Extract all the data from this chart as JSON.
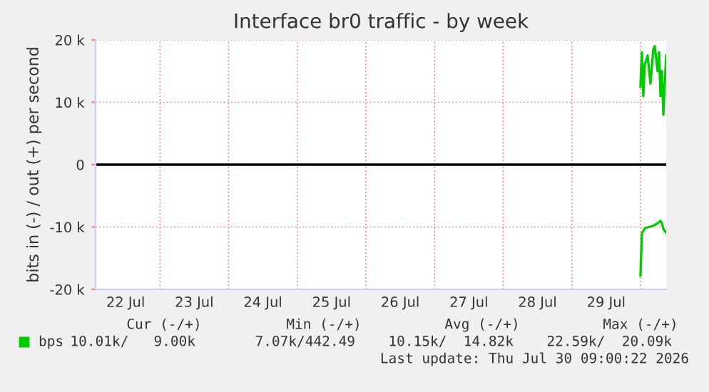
{
  "chart_data": {
    "type": "line",
    "title": "Interface br0 traffic - by week",
    "ylabel": "bits in (-) / out (+) per second",
    "xlim": [
      "2026-07-22T01:30",
      "2026-07-30T09:00"
    ],
    "xticks": [
      {
        "value": "2026-07-22T12:00",
        "label": "22 Jul"
      },
      {
        "value": "2026-07-23T00:00",
        "label": null
      },
      {
        "value": "2026-07-23T12:00",
        "label": "23 Jul"
      },
      {
        "value": "2026-07-24T00:00",
        "label": null
      },
      {
        "value": "2026-07-24T12:00",
        "label": "24 Jul"
      },
      {
        "value": "2026-07-25T00:00",
        "label": null
      },
      {
        "value": "2026-07-25T12:00",
        "label": "25 Jul"
      },
      {
        "value": "2026-07-26T00:00",
        "label": null
      },
      {
        "value": "2026-07-26T12:00",
        "label": "26 Jul"
      },
      {
        "value": "2026-07-27T00:00",
        "label": null
      },
      {
        "value": "2026-07-27T12:00",
        "label": "27 Jul"
      },
      {
        "value": "2026-07-28T00:00",
        "label": null
      },
      {
        "value": "2026-07-28T12:00",
        "label": "28 Jul"
      },
      {
        "value": "2026-07-29T00:00",
        "label": null
      },
      {
        "value": "2026-07-29T12:00",
        "label": "29 Jul"
      },
      {
        "value": "2026-07-30T00:00",
        "label": null
      }
    ],
    "ylim": [
      -20000,
      20000
    ],
    "yticks": [
      {
        "value": -20000,
        "label": "-20 k"
      },
      {
        "value": -10000,
        "label": "-10 k"
      },
      0,
      {
        "value": 10000,
        "label": "10 k"
      },
      {
        "value": 20000,
        "label": "20 k"
      }
    ],
    "grid": true,
    "legend": "bottom",
    "ref_lines": [
      {
        "axis": "y",
        "value": 0,
        "color": "#000000"
      }
    ],
    "series": [
      {
        "name": "bps",
        "color": "#00cc00",
        "x": [
          "2026-07-30T00:00",
          "2026-07-30T00:30",
          "2026-07-30T01:00",
          "2026-07-30T01:30",
          "2026-07-30T02:30",
          "2026-07-30T03:30",
          "2026-07-30T04:30",
          "2026-07-30T05:00",
          "2026-07-30T05:30",
          "2026-07-30T06:00",
          "2026-07-30T06:30",
          "2026-07-30T07:00",
          "2026-07-30T07:30",
          "2026-07-30T08:00",
          "2026-07-30T08:30",
          "2026-07-30T09:00"
        ],
        "values": [
          12500,
          18000,
          11000,
          16000,
          17500,
          13000,
          18500,
          19000,
          17000,
          15000,
          18000,
          11000,
          15000,
          8000,
          13000,
          17500
        ]
      },
      {
        "color": "#00cc00",
        "x": [
          "2026-07-30T00:00",
          "2026-07-30T00:30",
          "2026-07-30T01:30",
          "2026-07-30T03:00",
          "2026-07-30T04:30",
          "2026-07-30T06:00",
          "2026-07-30T07:00",
          "2026-07-30T07:30",
          "2026-07-30T08:00",
          "2026-07-30T09:00"
        ],
        "values": [
          -17800,
          -11000,
          -10200,
          -10000,
          -9800,
          -9400,
          -9000,
          -9400,
          -10300,
          -10900
        ]
      }
    ],
    "annotations": [
      "Cur (-/+)",
      "Min (-/+)",
      "Avg (-/+)",
      "Max (-/+)",
      "10.01k/   9.00k",
      "7.07k/442.49",
      "10.15k/  14.82k",
      "22.59k/  20.09k",
      "Last update: Thu Jul 30 09:00:22 2026"
    ]
  }
}
